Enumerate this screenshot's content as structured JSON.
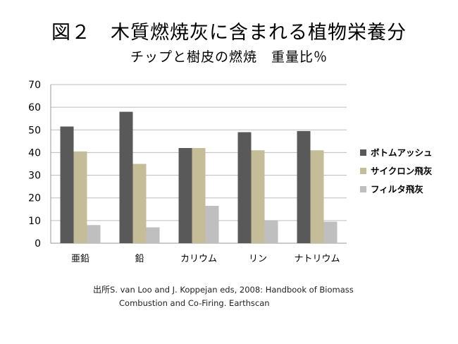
{
  "page": {
    "title": "図２　木質燃焼灰に含まれる植物栄養分",
    "subtitle": "チップと樹皮の燃焼　重量比％"
  },
  "source": {
    "label": "出所",
    "line1": "S. van Loo and J. Koppejan eds, 2008: Handbook of Biomass",
    "line2": "Combustion  and Co-Firing.  Earthscan"
  },
  "chart_data": {
    "type": "bar",
    "title": "",
    "xlabel": "",
    "ylabel": "",
    "ylim": [
      0,
      70
    ],
    "yticks": [
      0,
      10,
      20,
      30,
      40,
      50,
      60,
      70
    ],
    "categories": [
      "亜鉛",
      "鉛",
      "カリウム",
      "リン",
      "ナトリウム"
    ],
    "series": [
      {
        "name": "ボトムアッシュ",
        "color": "#595959",
        "values": [
          51.5,
          58,
          42,
          49,
          49.5
        ]
      },
      {
        "name": "サイクロン飛灰",
        "color": "#c4bd97",
        "values": [
          40.5,
          35,
          42,
          41,
          41
        ]
      },
      {
        "name": "フィルタ飛灰",
        "color": "#bfbfbf",
        "values": [
          8,
          7,
          16.5,
          10,
          9.5
        ]
      }
    ],
    "grid": true,
    "legend": "right"
  }
}
